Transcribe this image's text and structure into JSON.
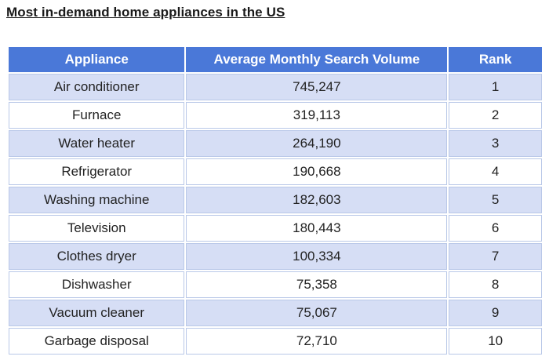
{
  "title": "Most in-demand home appliances in the US",
  "table": {
    "headers": [
      "Appliance",
      "Average Monthly Search Volume",
      "Rank"
    ],
    "rows": [
      [
        "Air conditioner",
        "745,247",
        "1"
      ],
      [
        "Furnace",
        "319,113",
        "2"
      ],
      [
        "Water heater",
        "264,190",
        "3"
      ],
      [
        "Refrigerator",
        "190,668",
        "4"
      ],
      [
        "Washing machine",
        "182,603",
        "5"
      ],
      [
        "Television",
        "180,443",
        "6"
      ],
      [
        "Clothes dryer",
        "100,334",
        "7"
      ],
      [
        "Dishwasher",
        "75,358",
        "8"
      ],
      [
        "Vacuum cleaner",
        "75,067",
        "9"
      ],
      [
        "Garbage disposal",
        "72,710",
        "10"
      ]
    ]
  },
  "colors": {
    "header_bg": "#4a78d8",
    "header_text": "#ffffff",
    "row_alt_bg": "#d6def5",
    "row_bg": "#ffffff"
  }
}
